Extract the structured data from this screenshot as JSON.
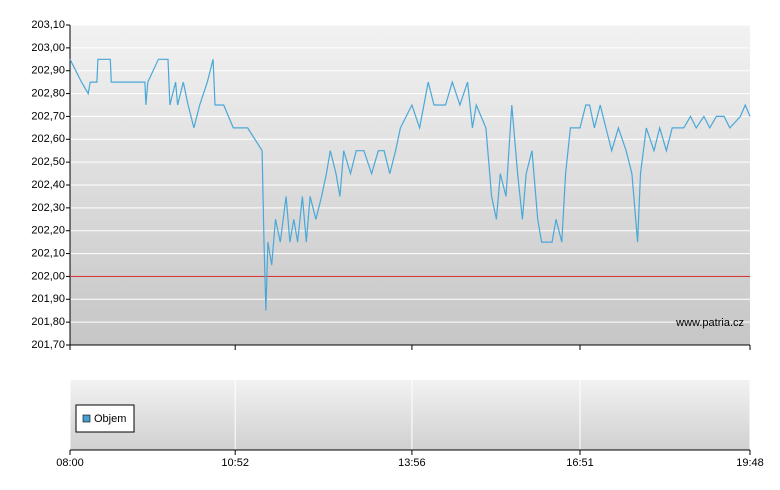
{
  "chart_data": {
    "type": "line",
    "watermark": "www.patria.cz",
    "x": [
      "08:00",
      "08:06",
      "08:12",
      "08:19",
      "08:21",
      "08:28",
      "08:29",
      "08:42",
      "08:43",
      "09:18",
      "09:19",
      "09:21",
      "09:32",
      "09:42",
      "09:44",
      "09:50",
      "09:52",
      "09:58",
      "10:03",
      "10:09",
      "10:15",
      "10:23",
      "10:29",
      "10:31",
      "10:40",
      "10:50",
      "11:05",
      "11:20",
      "11:22",
      "11:24",
      "11:26",
      "11:30",
      "11:34",
      "11:39",
      "11:45",
      "11:49",
      "11:53",
      "11:57",
      "12:02",
      "12:06",
      "12:10",
      "12:16",
      "12:22",
      "12:27",
      "12:31",
      "12:37",
      "12:41",
      "12:45",
      "12:52",
      "12:58",
      "13:06",
      "13:14",
      "13:21",
      "13:27",
      "13:33",
      "13:39",
      "13:44",
      "13:56",
      "14:04",
      "14:13",
      "14:19",
      "14:31",
      "14:38",
      "14:46",
      "14:54",
      "14:59",
      "15:03",
      "15:13",
      "15:19",
      "15:24",
      "15:28",
      "15:34",
      "15:40",
      "15:46",
      "15:51",
      "15:55",
      "16:01",
      "16:07",
      "16:11",
      "16:22",
      "16:26",
      "16:32",
      "16:36",
      "16:41",
      "16:51",
      "16:57",
      "17:01",
      "17:06",
      "17:12",
      "17:18",
      "17:24",
      "17:31",
      "17:39",
      "17:45",
      "17:49",
      "17:51",
      "17:54",
      "18:00",
      "18:08",
      "18:14",
      "18:21",
      "18:27",
      "18:33",
      "18:39",
      "18:46",
      "18:52",
      "19:00",
      "19:06",
      "19:13",
      "19:21",
      "19:27",
      "19:38",
      "19:43",
      "19:48"
    ],
    "series": [
      {
        "color": "#4aa8d8",
        "values": [
          202.95,
          202.9,
          202.85,
          202.8,
          202.85,
          202.85,
          202.95,
          202.95,
          202.85,
          202.85,
          202.75,
          202.85,
          202.95,
          202.95,
          202.75,
          202.85,
          202.75,
          202.85,
          202.75,
          202.65,
          202.75,
          202.85,
          202.95,
          202.75,
          202.75,
          202.65,
          202.65,
          202.55,
          202.15,
          201.85,
          202.15,
          202.05,
          202.25,
          202.15,
          202.35,
          202.15,
          202.25,
          202.15,
          202.35,
          202.15,
          202.35,
          202.25,
          202.35,
          202.45,
          202.55,
          202.45,
          202.35,
          202.55,
          202.45,
          202.55,
          202.55,
          202.45,
          202.55,
          202.55,
          202.45,
          202.55,
          202.65,
          202.75,
          202.65,
          202.85,
          202.75,
          202.75,
          202.85,
          202.75,
          202.85,
          202.65,
          202.75,
          202.65,
          202.35,
          202.25,
          202.45,
          202.35,
          202.75,
          202.45,
          202.25,
          202.45,
          202.55,
          202.25,
          202.15,
          202.15,
          202.25,
          202.15,
          202.45,
          202.65,
          202.65,
          202.75,
          202.75,
          202.65,
          202.75,
          202.65,
          202.55,
          202.65,
          202.55,
          202.45,
          202.25,
          202.15,
          202.45,
          202.65,
          202.55,
          202.65,
          202.55,
          202.65,
          202.65,
          202.65,
          202.7,
          202.65,
          202.7,
          202.65,
          202.7,
          202.7,
          202.65,
          202.7,
          202.75,
          202.7
        ]
      }
    ],
    "reference_line": {
      "value": 202.0,
      "color": "#d03c3c"
    },
    "volume": {
      "name": "Objem",
      "color": "#4a9fd0"
    },
    "xlim": [
      "08:00",
      "19:48"
    ],
    "xticks": [
      "08:00",
      "10:52",
      "13:56",
      "16:51",
      "19:48"
    ],
    "ylim": [
      201.7,
      203.1
    ],
    "yticks": [
      {
        "value": 201.7,
        "label": "201,70"
      },
      {
        "value": 201.8,
        "label": "201,80"
      },
      {
        "value": 201.9,
        "label": "201,90"
      },
      {
        "value": 202.0,
        "label": "202,00"
      },
      {
        "value": 202.1,
        "label": "202,10"
      },
      {
        "value": 202.2,
        "label": "202,20"
      },
      {
        "value": 202.3,
        "label": "202,30"
      },
      {
        "value": 202.4,
        "label": "202,40"
      },
      {
        "value": 202.5,
        "label": "202,50"
      },
      {
        "value": 202.6,
        "label": "202,60"
      },
      {
        "value": 202.7,
        "label": "202,70"
      },
      {
        "value": 202.8,
        "label": "202,80"
      },
      {
        "value": 202.9,
        "label": "202,90"
      },
      {
        "value": 203.0,
        "label": "203,00"
      },
      {
        "value": 203.1,
        "label": "203,10"
      }
    ],
    "grid": true
  }
}
